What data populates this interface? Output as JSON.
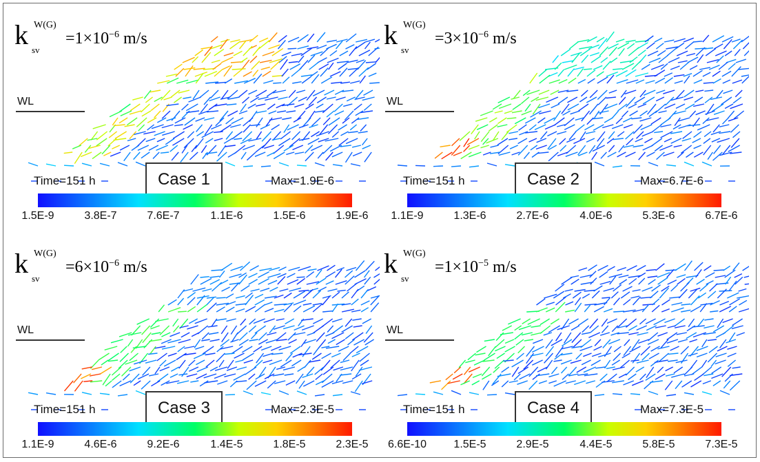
{
  "panels": [
    {
      "eq_rhs": "=1×10",
      "exp": "−6",
      "unit": "m/s",
      "wl": "WL",
      "time": "Time=151 h",
      "case": "Case 1",
      "max": "Max=1.9E-6",
      "ticks": [
        "1.5E-9",
        "3.8E-7",
        "7.6E-7",
        "1.1E-6",
        "1.5E-6",
        "1.9E-6"
      ],
      "seed": 11,
      "hot": 0.9
    },
    {
      "eq_rhs": "=3×10",
      "exp": "−6",
      "unit": "m/s",
      "wl": "WL",
      "time": "Time=151 h",
      "case": "Case 2",
      "max": "Max=6.7E-6",
      "ticks": [
        "1.1E-9",
        "1.3E-6",
        "2.7E-6",
        "4.0E-6",
        "5.3E-6",
        "6.7E-6"
      ],
      "seed": 23,
      "hot": 0.45
    },
    {
      "eq_rhs": "=6×10",
      "exp": "−6",
      "unit": "m/s",
      "wl": "WL",
      "time": "Time=151 h",
      "case": "Case 3",
      "max": "Max=2.3E-5",
      "ticks": [
        "1.1E-9",
        "4.6E-6",
        "9.2E-6",
        "1.4E-5",
        "1.8E-5",
        "2.3E-5"
      ],
      "seed": 37,
      "hot": 0.2
    },
    {
      "eq_rhs": "=1×10",
      "exp": "−5",
      "unit": "m/s",
      "wl": "WL",
      "time": "Time=151 h",
      "case": "Case 4",
      "max": "Max=7.3E-5",
      "ticks": [
        "6.6E-10",
        "1.5E-5",
        "2.9E-5",
        "4.4E-5",
        "5.8E-5",
        "7.3E-5"
      ],
      "seed": 53,
      "hot": 0.12
    }
  ],
  "symbol": {
    "k": "k",
    "sup": "W(G)",
    "sub": "sv"
  }
}
